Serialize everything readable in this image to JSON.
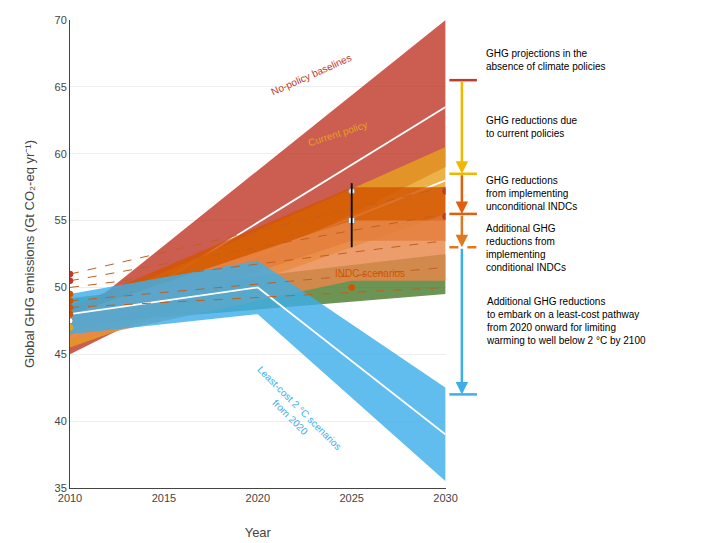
{
  "chart_data": {
    "type": "area",
    "xlabel": "Year",
    "ylabel": "Global GHG emissions (Gt CO₂-eq yr⁻¹)",
    "xlim": [
      2010,
      2030
    ],
    "ylim": [
      35,
      70
    ],
    "xticks": [
      2010,
      2015,
      2020,
      2025,
      2030
    ],
    "yticks": [
      35,
      40,
      45,
      50,
      55,
      60,
      65,
      70
    ],
    "grid": "y",
    "series": [
      {
        "color": "#c0392b",
        "x": [
          2010,
          2030
        ],
        "lower": [
          45.0,
          59.0
        ],
        "upper": [
          47.5,
          70.0
        ]
      },
      {
        "type": "line",
        "color": "white",
        "x": [
          2010,
          2030
        ],
        "values": [
          46.2,
          63.5
        ]
      },
      {
        "color": "#e8a020",
        "x": [
          2010,
          2030
        ],
        "lower": [
          45.5,
          55.5
        ],
        "upper": [
          48.0,
          60.5
        ]
      },
      {
        "type": "line",
        "color": "white",
        "x": [
          2010,
          2030
        ],
        "values": [
          46.8,
          58.0
        ]
      },
      {
        "color": "#4a7c2f",
        "x": [
          2010,
          2030
        ],
        "lower": [
          47.2,
          49.5
        ],
        "upper": [
          49.2,
          52.5
        ]
      },
      {
        "color": "#d35400",
        "x": [
          2010,
          2025,
          2030
        ],
        "lower": [
          46.5,
          53.5,
          53.5
        ],
        "upper": [
          48.5,
          57.5,
          57.5
        ]
      },
      {
        "color": "#e8874a",
        "x": [
          2010,
          2025,
          2030
        ],
        "lower": [
          46.0,
          50.5,
          50.5
        ],
        "upper": [
          48.0,
          55.0,
          55.0
        ]
      },
      {
        "color": "#3daee9",
        "x": [
          2010,
          2020,
          2030
        ],
        "lower": [
          46.5,
          48.0,
          35.5
        ],
        "upper": [
          49.5,
          52.0,
          42.5
        ]
      },
      {
        "type": "line",
        "color": "white",
        "x": [
          2010,
          2020,
          2030
        ],
        "values": [
          48.0,
          50.0,
          39.0
        ]
      },
      {
        "type": "line",
        "line_style": "dashed",
        "color": "#c06020",
        "x": [
          2010,
          2030
        ],
        "values": [
          51.0,
          57.5
        ]
      },
      {
        "type": "line",
        "line_style": "dashed",
        "color": "#c06020",
        "x": [
          2010,
          2030
        ],
        "values": [
          50.5,
          55.5
        ]
      },
      {
        "type": "line",
        "line_style": "dashed",
        "color": "#c06020",
        "x": [
          2010,
          2030
        ],
        "values": [
          50.0,
          53.5
        ]
      },
      {
        "type": "line",
        "line_style": "dashed",
        "color": "#c06020",
        "x": [
          2010,
          2030
        ],
        "values": [
          49.0,
          51.5
        ]
      },
      {
        "type": "line",
        "line_style": "dashed",
        "color": "#c06020",
        "x": [
          2010,
          2030
        ],
        "values": [
          48.5,
          50.0
        ]
      },
      {
        "type": "scatter",
        "marker": "circle",
        "x": [
          2010,
          2010,
          2010,
          2010,
          2010,
          2010,
          2010,
          2010
        ],
        "values": [
          51.0,
          50.5,
          49.5,
          49.0,
          48.5,
          48.0,
          47.5,
          47.0
        ],
        "colors": [
          "#c0392b",
          "#c0392b",
          "#d35400",
          "#d35400",
          "#d35400",
          "#d35400",
          "white",
          "#e8a020"
        ]
      },
      {
        "type": "scatter",
        "marker": "circle",
        "x": [
          2025,
          2025
        ],
        "values": [
          57.2,
          50.0
        ],
        "colors": [
          "white",
          "#d35400"
        ]
      },
      {
        "type": "scatter",
        "marker": "square",
        "x": [
          2025
        ],
        "values": [
          55.0
        ],
        "colors": [
          "white"
        ]
      },
      {
        "type": "scatter",
        "marker": "circle",
        "x": [
          2030,
          2030
        ],
        "values": [
          57.2,
          55.3
        ],
        "colors": [
          "#c0392b",
          "#c0392b"
        ]
      },
      {
        "type": "line",
        "color": "black",
        "x": [
          2025,
          2025
        ],
        "values": [
          53.0,
          57.8
        ]
      }
    ],
    "annotations": [
      {
        "text": "No-policy baselines",
        "color": "#c0392b",
        "x": 2020.5,
        "y": 64.0
      },
      {
        "text": "Current policy",
        "color": "#e8a020",
        "x": 2022.5,
        "y": 60.2
      },
      {
        "text": "INDC scenarios",
        "color": "#d35400",
        "x": 2024.0,
        "y": 50.5
      },
      {
        "text": "Least-cost 2 °C scenarios\nfrom 2020",
        "color": "#3daee9",
        "x": 2022.0,
        "y": 44.5
      }
    ],
    "levels": [
      {
        "value": 65.5,
        "color": "#c0392b",
        "text": "GHG projections in the\nabsence of climate policies"
      },
      {
        "value": 58.5,
        "color": "#f0b800",
        "text": "GHG reductions due\nto current policies"
      },
      {
        "value": 55.5,
        "color": "#e06010",
        "text": "GHG reductions\nfrom implementing\nunconditional INDCs"
      },
      {
        "value": 53.0,
        "color": "#e07820",
        "line_style": "dashed",
        "text": "Additional GHG\nreductions from\nimplementing\nconditional INDCs"
      },
      {
        "value": 42.0,
        "color": "#3daee9",
        "text": "Additional GHG reductions\nto embark on a least-cost pathway\nfrom 2020 onward for limiting\nwarming to well below 2 °C by 2100"
      }
    ]
  }
}
